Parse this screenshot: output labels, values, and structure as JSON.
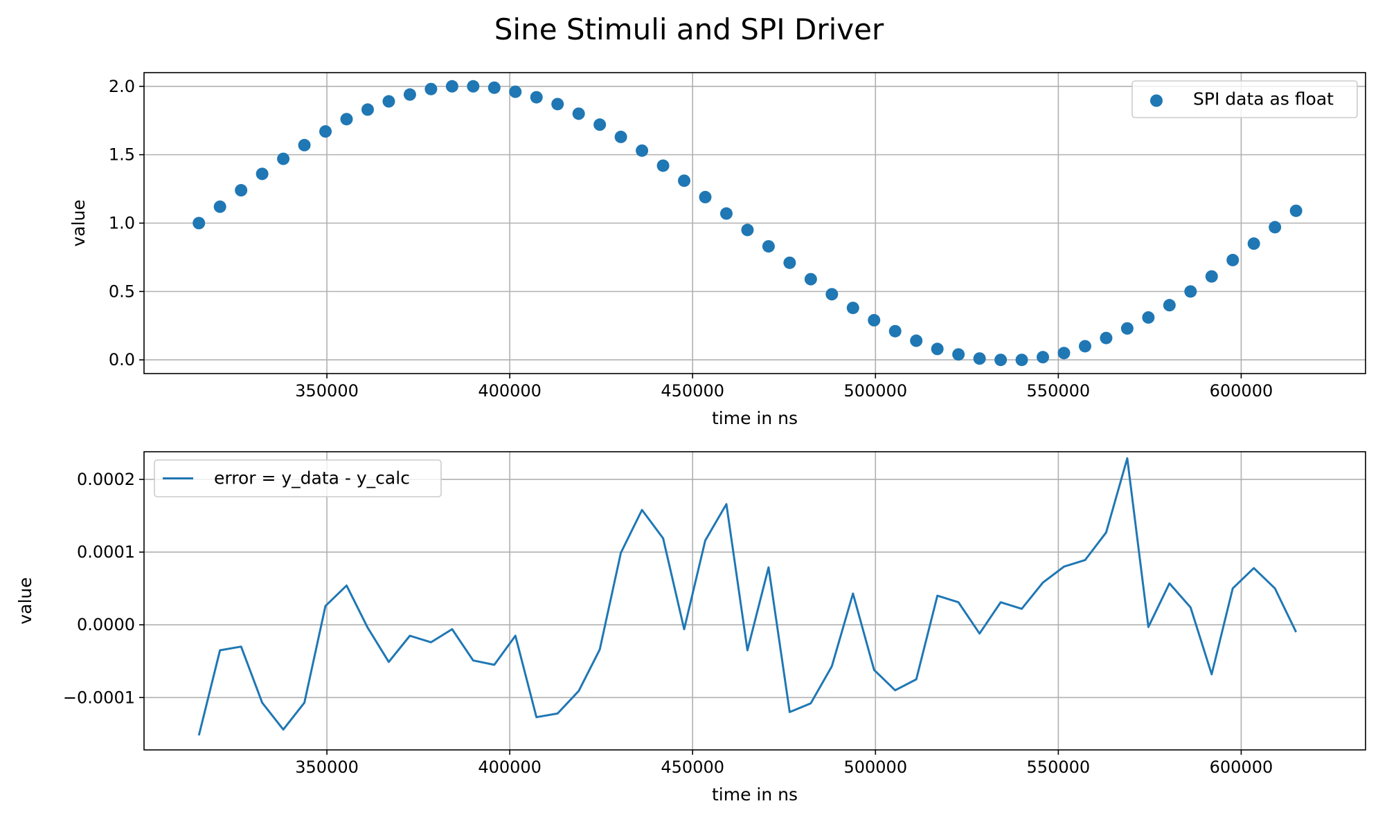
{
  "title": "Sine Stimuli and SPI Driver",
  "colors": {
    "series": "#1f77b4",
    "grid": "#b0b0b0"
  },
  "chart_data": [
    {
      "type": "scatter",
      "xlabel": "time in ns",
      "ylabel": "value",
      "xlim": [
        300000,
        634000
      ],
      "ylim": [
        -0.1,
        2.1
      ],
      "xticks": [
        350000,
        400000,
        450000,
        500000,
        550000,
        600000
      ],
      "xtick_labels": [
        "350000",
        "400000",
        "450000",
        "500000",
        "550000",
        "600000"
      ],
      "yticks": [
        0.0,
        0.5,
        1.0,
        1.5,
        2.0
      ],
      "ytick_labels": [
        "0.0",
        "0.5",
        "1.0",
        "1.5",
        "2.0"
      ],
      "grid": true,
      "legend_position": "upper right",
      "series": [
        {
          "name": "SPI data as float",
          "x": [
            315000,
            320769,
            326538,
            332308,
            338077,
            343846,
            349615,
            355385,
            361154,
            366923,
            372692,
            378462,
            384231,
            390000,
            395769,
            401538,
            407308,
            413077,
            418846,
            424615,
            430385,
            436154,
            441923,
            447692,
            453462,
            459231,
            465000,
            470769,
            476538,
            482308,
            488077,
            493846,
            499615,
            505385,
            511154,
            516923,
            522692,
            528462,
            534231,
            540000,
            545769,
            551538,
            557308,
            563077,
            568846,
            574615,
            580385,
            586154,
            591923,
            597692,
            603462,
            609231,
            615000
          ],
          "y": [
            1.0,
            1.12,
            1.24,
            1.36,
            1.47,
            1.57,
            1.67,
            1.76,
            1.83,
            1.89,
            1.94,
            1.98,
            2.0,
            2.0,
            1.99,
            1.96,
            1.92,
            1.87,
            1.8,
            1.72,
            1.63,
            1.53,
            1.42,
            1.31,
            1.19,
            1.07,
            0.95,
            0.83,
            0.71,
            0.59,
            0.48,
            0.38,
            0.29,
            0.21,
            0.14,
            0.08,
            0.04,
            0.01,
            0.0,
            0.0,
            0.02,
            0.05,
            0.1,
            0.16,
            0.23,
            0.31,
            0.4,
            0.5,
            0.61,
            0.73,
            0.85,
            0.97,
            1.09
          ]
        }
      ]
    },
    {
      "type": "line",
      "xlabel": "time in ns",
      "ylabel": "value",
      "xlim": [
        300000,
        634000
      ],
      "ylim": [
        -0.000172,
        0.000238
      ],
      "xticks": [
        350000,
        400000,
        450000,
        500000,
        550000,
        600000
      ],
      "xtick_labels": [
        "350000",
        "400000",
        "450000",
        "500000",
        "550000",
        "600000"
      ],
      "yticks": [
        -0.0001,
        0.0,
        0.0001,
        0.0002
      ],
      "ytick_labels": [
        "−0.0001",
        "0.0000",
        "0.0001",
        "0.0002"
      ],
      "grid": true,
      "legend_position": "upper left",
      "series": [
        {
          "name": "error = y_data - y_calc",
          "x": [
            315000,
            320769,
            326538,
            332308,
            338077,
            343846,
            349615,
            355385,
            361154,
            366923,
            372692,
            378462,
            384231,
            390000,
            395769,
            401538,
            407308,
            413077,
            418846,
            424615,
            430385,
            436154,
            441923,
            447692,
            453462,
            459231,
            465000,
            470769,
            476538,
            482308,
            488077,
            493846,
            499615,
            505385,
            511154,
            516923,
            522692,
            528462,
            534231,
            540000,
            545769,
            551538,
            557308,
            563077,
            568846,
            574615,
            580385,
            586154,
            591923,
            597692,
            603462,
            609231,
            615000
          ],
          "y": [
            -0.000152,
            -3.5e-05,
            -3e-05,
            -0.000107,
            -0.000144,
            -0.000107,
            2.6e-05,
            5.4e-05,
            -4e-06,
            -5.1e-05,
            -1.5e-05,
            -2.4e-05,
            -6e-06,
            -4.9e-05,
            -5.5e-05,
            -1.5e-05,
            -0.000127,
            -0.000122,
            -9.1e-05,
            -3.4e-05,
            9.9e-05,
            0.000158,
            0.000119,
            -6e-06,
            0.000116,
            0.000166,
            -3.5e-05,
            7.9e-05,
            -0.00012,
            -0.000108,
            -5.7e-05,
            4.3e-05,
            -6.2e-05,
            -9e-05,
            -7.5e-05,
            4e-05,
            3.1e-05,
            -1.2e-05,
            3.1e-05,
            2.2e-05,
            5.8e-05,
            8e-05,
            8.9e-05,
            0.000127,
            0.000229,
            -3e-06,
            5.7e-05,
            2.4e-05,
            -6.8e-05,
            5e-05,
            7.8e-05,
            5e-05,
            -1e-05
          ]
        }
      ]
    }
  ]
}
